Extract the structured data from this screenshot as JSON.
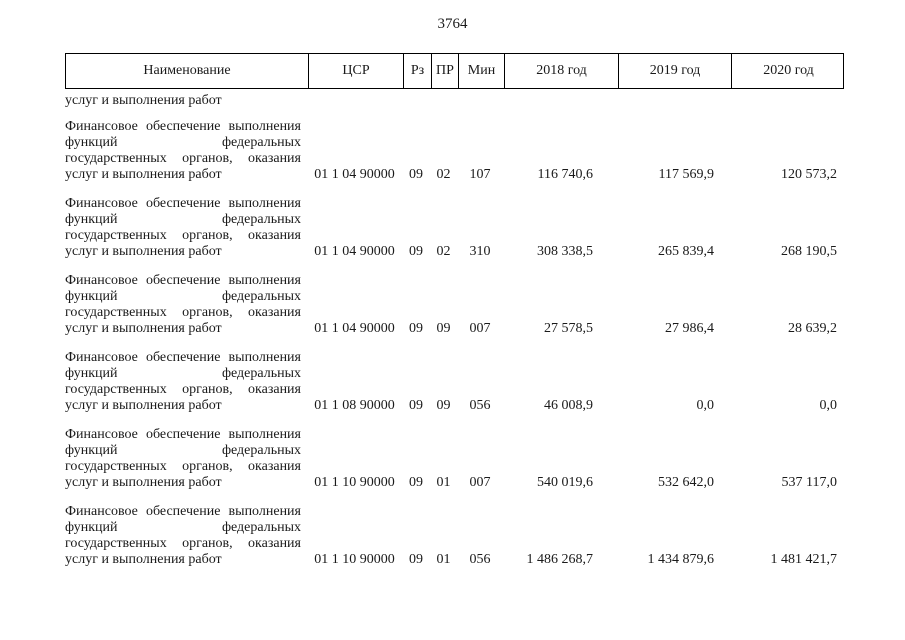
{
  "page": {
    "number": "3764"
  },
  "table": {
    "headers": {
      "name": "Наименование",
      "csr": "ЦСР",
      "rz": "Рз",
      "pr": "ПР",
      "min": "Мин",
      "y2018": "2018 год",
      "y2019": "2019 год",
      "y2020": "2020 год"
    },
    "continuation_text": "услуг и выполнения работ",
    "rows": [
      {
        "name": "Финансовое обеспечение выполнения функций федеральных государственных органов, оказания услуг и выполнения работ",
        "csr": "01 1 04 90000",
        "rz": "09",
        "pr": "02",
        "min": "107",
        "y2018": "116 740,6",
        "y2019": "117 569,9",
        "y2020": "120 573,2"
      },
      {
        "name": "Финансовое обеспечение выполнения функций федеральных государственных органов, оказания услуг и выполнения работ",
        "csr": "01 1 04 90000",
        "rz": "09",
        "pr": "02",
        "min": "310",
        "y2018": "308 338,5",
        "y2019": "265 839,4",
        "y2020": "268 190,5"
      },
      {
        "name": "Финансовое обеспечение выполнения функций федеральных государственных органов, оказания услуг и выполнения работ",
        "csr": "01 1 04 90000",
        "rz": "09",
        "pr": "09",
        "min": "007",
        "y2018": "27 578,5",
        "y2019": "27 986,4",
        "y2020": "28 639,2"
      },
      {
        "name": "Финансовое обеспечение выполнения функций федеральных государственных органов, оказания услуг и выполнения работ",
        "csr": "01 1 08 90000",
        "rz": "09",
        "pr": "09",
        "min": "056",
        "y2018": "46 008,9",
        "y2019": "0,0",
        "y2020": "0,0"
      },
      {
        "name": "Финансовое обеспечение выполнения функций федеральных государственных органов, оказания услуг и выполнения работ",
        "csr": "01 1 10 90000",
        "rz": "09",
        "pr": "01",
        "min": "007",
        "y2018": "540 019,6",
        "y2019": "532 642,0",
        "y2020": "537 117,0"
      },
      {
        "name": "Финансовое обеспечение выполнения функций федеральных государственных органов, оказания услуг и выполнения работ",
        "csr": "01 1 10 90000",
        "rz": "09",
        "pr": "01",
        "min": "056",
        "y2018": "1 486 268,7",
        "y2019": "1 434 879,6",
        "y2020": "1 481 421,7"
      }
    ]
  }
}
